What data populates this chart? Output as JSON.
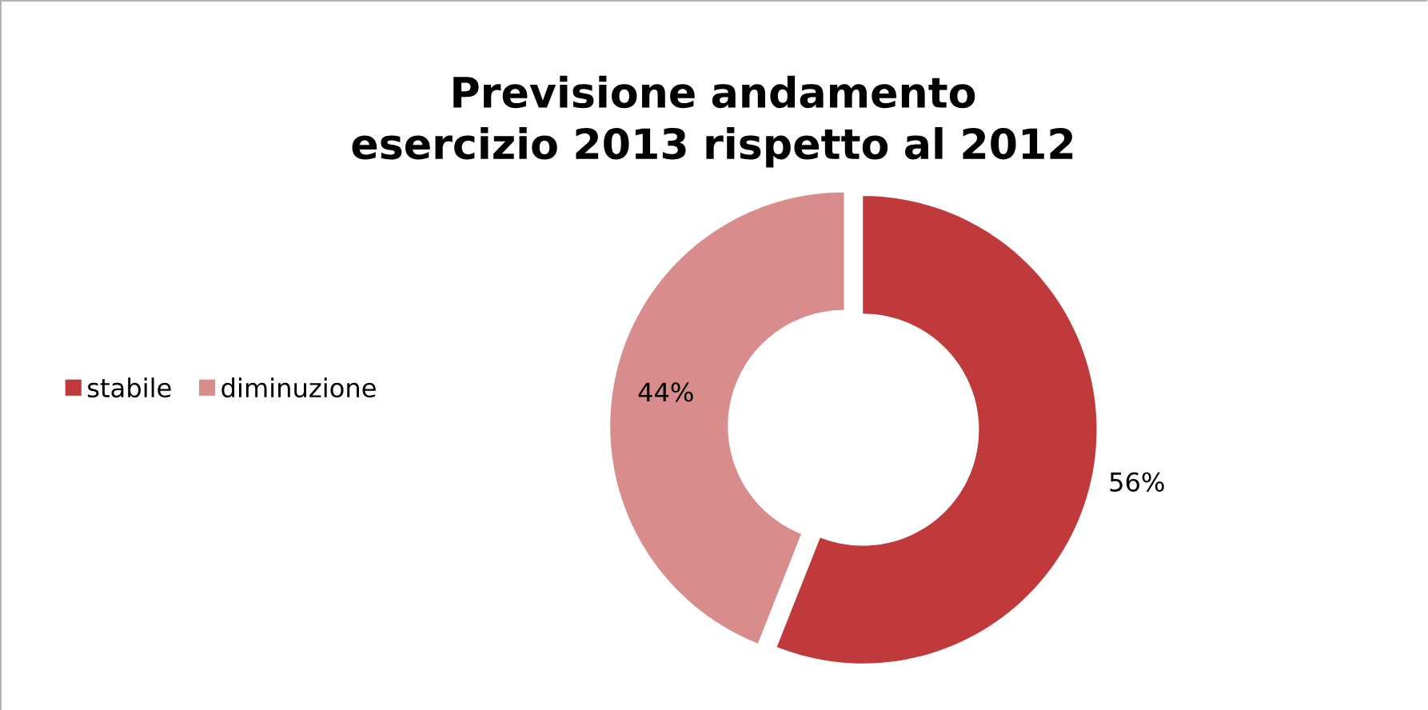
{
  "chart_data": {
    "type": "donut",
    "title": "Previsione andamento esercizio 2013 rispetto al 2012",
    "categories": [
      "stabile",
      "diminuzione"
    ],
    "values": [
      56,
      44
    ],
    "colors": [
      "#c0393b",
      "#d98c8c"
    ],
    "value_labels": [
      "56%",
      "44%"
    ],
    "legend": "left"
  }
}
